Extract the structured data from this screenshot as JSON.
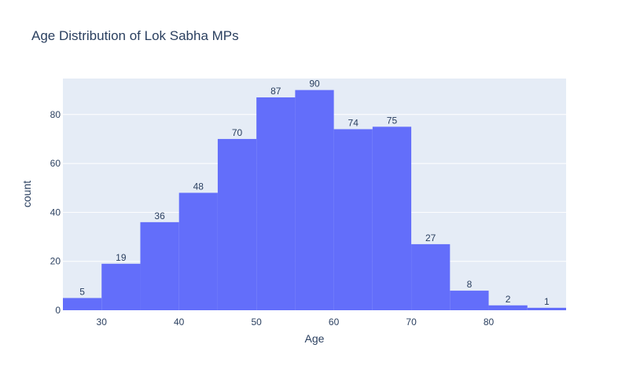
{
  "chart_data": {
    "type": "bar",
    "title": "Age Distribution of Lok Sabha MPs",
    "xlabel": "Age",
    "ylabel": "count",
    "bins": [
      {
        "start": 25,
        "end": 30,
        "count": 5
      },
      {
        "start": 30,
        "end": 35,
        "count": 19
      },
      {
        "start": 35,
        "end": 40,
        "count": 36
      },
      {
        "start": 40,
        "end": 45,
        "count": 48
      },
      {
        "start": 45,
        "end": 50,
        "count": 70
      },
      {
        "start": 50,
        "end": 55,
        "count": 87
      },
      {
        "start": 55,
        "end": 60,
        "count": 90
      },
      {
        "start": 60,
        "end": 65,
        "count": 74
      },
      {
        "start": 65,
        "end": 70,
        "count": 75
      },
      {
        "start": 70,
        "end": 75,
        "count": 27
      },
      {
        "start": 75,
        "end": 80,
        "count": 8
      },
      {
        "start": 80,
        "end": 85,
        "count": 2
      },
      {
        "start": 85,
        "end": 90,
        "count": 1
      }
    ],
    "xlim": [
      25,
      90
    ],
    "ylim": [
      0,
      94.7
    ],
    "xticks": [
      30,
      40,
      50,
      60,
      70,
      80
    ],
    "yticks": [
      0,
      20,
      40,
      60,
      80
    ],
    "grid": true,
    "colors": {
      "bar": "#636efa",
      "plot_background": "#e5ecf6",
      "gridline": "#ffffff",
      "text": "#2a3f5f"
    }
  }
}
